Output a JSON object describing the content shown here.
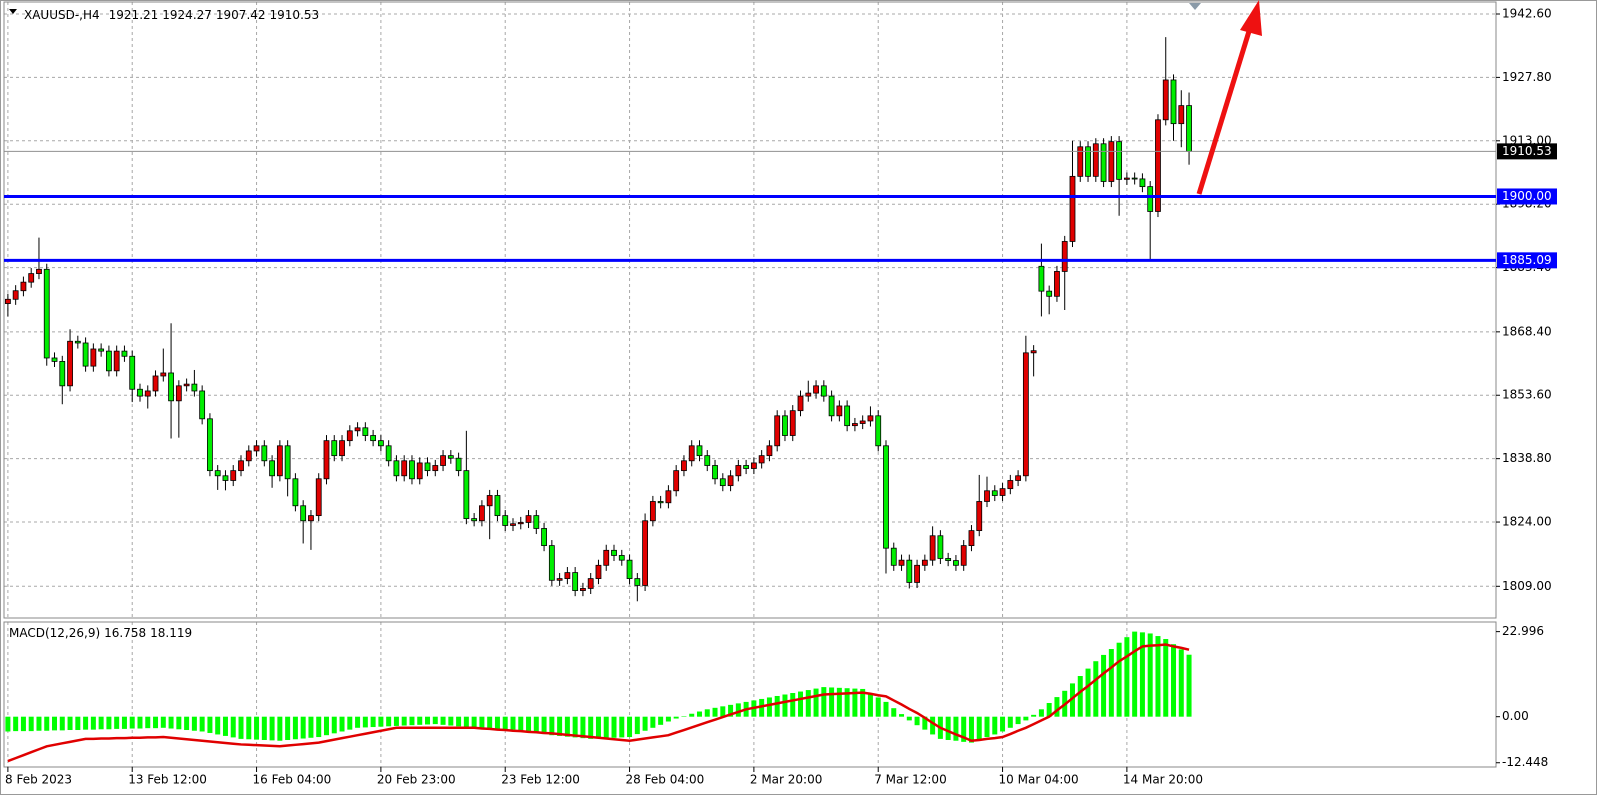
{
  "chart_data": {
    "type": "candlestick",
    "title": "XAUUSD-,H4",
    "bull_color": "#e00000",
    "bear_color": "#00ee00",
    "grid": true,
    "xlim": [
      -0.5,
      191.5
    ],
    "ylim": [
      1801.6,
      1945.4
    ],
    "yticks": [
      {
        "value": 1809,
        "label": "1809.00"
      },
      {
        "value": 1824,
        "label": "1824.00"
      },
      {
        "value": 1838.8,
        "label": "1838.80"
      },
      {
        "value": 1853.6,
        "label": "1853.60"
      },
      {
        "value": 1868.4,
        "label": "1868.40"
      },
      {
        "value": 1883.4,
        "label": "1883.40"
      },
      {
        "value": 1898.2,
        "label": "1898.20"
      },
      {
        "value": 1913,
        "label": "1913.00"
      },
      {
        "value": 1927.8,
        "label": "1927.80"
      },
      {
        "value": 1942.6,
        "label": "1942.60"
      }
    ],
    "xticks": [
      {
        "value": 0,
        "label": "8 Feb 2023"
      },
      {
        "value": 16,
        "label": "13 Feb 12:00"
      },
      {
        "value": 32,
        "label": "16 Feb 04:00"
      },
      {
        "value": 48,
        "label": "20 Feb 23:00"
      },
      {
        "value": 64,
        "label": "23 Feb 12:00"
      },
      {
        "value": 80,
        "label": "28 Feb 04:00"
      },
      {
        "value": 96,
        "label": "2 Mar 20:00"
      },
      {
        "value": 112,
        "label": "7 Mar 12:00"
      },
      {
        "value": 128,
        "label": "10 Mar 04:00"
      },
      {
        "value": 144,
        "label": "14 Mar 20:00"
      }
    ],
    "levels": [
      {
        "value": 1900,
        "label": "1900.00",
        "color": "#0000ff"
      },
      {
        "value": 1885.09,
        "label": "1885.09",
        "color": "#0000ff"
      }
    ],
    "candles": [
      [
        1875,
        1877.3,
        1872,
        1876
      ],
      [
        1876,
        1879.3,
        1874.7,
        1878
      ],
      [
        1878,
        1881.3,
        1876.7,
        1880
      ],
      [
        1880,
        1883.3,
        1878.7,
        1882
      ],
      [
        1882,
        1890.4,
        1880.7,
        1883
      ],
      [
        1883,
        1884.3,
        1860.5,
        1862.3
      ],
      [
        1862.3,
        1863.6,
        1860.2,
        1861.5
      ],
      [
        1861.5,
        1862.8,
        1851.5,
        1855.8
      ],
      [
        1855.8,
        1869,
        1854.5,
        1866.2
      ],
      [
        1866.2,
        1867.5,
        1864.5,
        1865.8
      ],
      [
        1865.8,
        1867.1,
        1859.1,
        1860.4
      ],
      [
        1860.4,
        1865.7,
        1859.1,
        1864.4
      ],
      [
        1864.4,
        1865.7,
        1862.6,
        1863.9
      ],
      [
        1863.9,
        1865.2,
        1858,
        1859.3
      ],
      [
        1859.3,
        1865.2,
        1858,
        1863.9
      ],
      [
        1863.9,
        1865.2,
        1861.4,
        1862.7
      ],
      [
        1862.7,
        1864,
        1852,
        1855
      ],
      [
        1855,
        1856.3,
        1852.1,
        1853.4
      ],
      [
        1853.4,
        1855.9,
        1850.5,
        1854.6
      ],
      [
        1854.6,
        1859.4,
        1853.3,
        1858.1
      ],
      [
        1858.1,
        1864.5,
        1856.8,
        1858.8
      ],
      [
        1858.8,
        1870.4,
        1843.5,
        1852.3
      ],
      [
        1852.3,
        1857.1,
        1843.7,
        1855.8
      ],
      [
        1855.8,
        1857.5,
        1854.5,
        1856.2
      ],
      [
        1856.2,
        1859.5,
        1853.3,
        1854.6
      ],
      [
        1854.6,
        1855.9,
        1846.8,
        1848.1
      ],
      [
        1848.1,
        1849.4,
        1834.7,
        1836
      ],
      [
        1836,
        1837.3,
        1831.5,
        1834.8
      ],
      [
        1834.8,
        1836.1,
        1831.4,
        1833.7
      ],
      [
        1833.7,
        1837.3,
        1832.4,
        1836
      ],
      [
        1836,
        1839.6,
        1834.7,
        1838.3
      ],
      [
        1838.3,
        1841.9,
        1837,
        1840.6
      ],
      [
        1840.6,
        1843.1,
        1839.3,
        1841.8
      ],
      [
        1841.8,
        1843.1,
        1837,
        1838.3
      ],
      [
        1838.3,
        1839.6,
        1832,
        1834.8
      ],
      [
        1834.8,
        1843.1,
        1833.5,
        1841.8
      ],
      [
        1841.8,
        1843.1,
        1830,
        1834.1
      ],
      [
        1834.1,
        1835.4,
        1826.5,
        1827.8
      ],
      [
        1827.8,
        1829.1,
        1819,
        1824.3
      ],
      [
        1824.3,
        1826.8,
        1817.5,
        1825.5
      ],
      [
        1825.5,
        1835.4,
        1824.2,
        1834.1
      ],
      [
        1834.1,
        1844.3,
        1832.8,
        1843
      ],
      [
        1843,
        1844.3,
        1838.2,
        1839.5
      ],
      [
        1839.5,
        1844.3,
        1838.2,
        1843
      ],
      [
        1843,
        1846.6,
        1841.7,
        1845.3
      ],
      [
        1845.3,
        1847.3,
        1844,
        1846
      ],
      [
        1846,
        1847.3,
        1842.9,
        1844.2
      ],
      [
        1844.2,
        1845.5,
        1841.7,
        1843
      ],
      [
        1843,
        1844.3,
        1840.5,
        1841.8
      ],
      [
        1841.8,
        1843.1,
        1837,
        1838.3
      ],
      [
        1838.3,
        1839.6,
        1833.5,
        1834.8
      ],
      [
        1834.8,
        1839.6,
        1833.5,
        1838.3
      ],
      [
        1838.3,
        1839.6,
        1832.8,
        1834.1
      ],
      [
        1834.1,
        1839.1,
        1832.8,
        1837.8
      ],
      [
        1837.8,
        1839.1,
        1834.7,
        1836
      ],
      [
        1836,
        1838.5,
        1834.7,
        1837.2
      ],
      [
        1837.2,
        1840.8,
        1835.9,
        1839.5
      ],
      [
        1839.5,
        1840.8,
        1837.6,
        1838.9
      ],
      [
        1838.9,
        1840.2,
        1834.7,
        1836
      ],
      [
        1836,
        1845.3,
        1823.5,
        1824.8
      ],
      [
        1824.8,
        1826.1,
        1823,
        1824.3
      ],
      [
        1824.3,
        1829.1,
        1823,
        1827.8
      ],
      [
        1827.8,
        1831.5,
        1820,
        1830.2
      ],
      [
        1830.2,
        1831.5,
        1824.2,
        1825.5
      ],
      [
        1825.5,
        1826.8,
        1821.9,
        1823.2
      ],
      [
        1823.2,
        1824.9,
        1821.9,
        1823.6
      ],
      [
        1823.6,
        1825.2,
        1822.3,
        1823.9
      ],
      [
        1823.9,
        1826.8,
        1822.6,
        1825.5
      ],
      [
        1825.5,
        1826.8,
        1821.2,
        1822.5
      ],
      [
        1822.5,
        1823.8,
        1817.2,
        1818.5
      ],
      [
        1818.5,
        1819.8,
        1809.1,
        1810.4
      ],
      [
        1810.4,
        1812.1,
        1809.1,
        1810.8
      ],
      [
        1810.8,
        1813.5,
        1809.5,
        1812.2
      ],
      [
        1812.2,
        1813.5,
        1806.7,
        1808
      ],
      [
        1808,
        1809.8,
        1806.7,
        1808.5
      ],
      [
        1808.5,
        1812.1,
        1807.2,
        1810.8
      ],
      [
        1810.8,
        1815.2,
        1809.5,
        1813.9
      ],
      [
        1813.9,
        1818.7,
        1812.6,
        1817.4
      ],
      [
        1817.4,
        1818.7,
        1814.9,
        1816.2
      ],
      [
        1816.2,
        1817.5,
        1813.8,
        1815.1
      ],
      [
        1815.1,
        1816.4,
        1809.5,
        1810.8
      ],
      [
        1810.8,
        1812.1,
        1805.5,
        1809.2
      ],
      [
        1809.2,
        1826,
        1807.9,
        1824.3
      ],
      [
        1824.3,
        1830.1,
        1823,
        1828.8
      ],
      [
        1828.8,
        1830.1,
        1827.2,
        1828.5
      ],
      [
        1828.5,
        1832.6,
        1827.2,
        1831.3
      ],
      [
        1831.3,
        1837.3,
        1830,
        1836
      ],
      [
        1836,
        1839.6,
        1834.7,
        1838.3
      ],
      [
        1838.3,
        1843.1,
        1837,
        1841.8
      ],
      [
        1841.8,
        1843.1,
        1838.2,
        1839.5
      ],
      [
        1839.5,
        1840.8,
        1835.9,
        1837.2
      ],
      [
        1837.2,
        1838.5,
        1832.8,
        1834.1
      ],
      [
        1834.1,
        1835.4,
        1831.2,
        1832.5
      ],
      [
        1832.5,
        1836.1,
        1831.2,
        1834.8
      ],
      [
        1834.8,
        1838.5,
        1833.5,
        1837.2
      ],
      [
        1837.2,
        1838.5,
        1835.2,
        1836.5
      ],
      [
        1836.5,
        1839.1,
        1835.2,
        1837.8
      ],
      [
        1837.8,
        1840.8,
        1836.5,
        1839.5
      ],
      [
        1839.5,
        1843.1,
        1838.2,
        1841.8
      ],
      [
        1841.8,
        1850.1,
        1840.5,
        1848.8
      ],
      [
        1848.8,
        1850.1,
        1842.9,
        1844.2
      ],
      [
        1844.2,
        1851.3,
        1842.9,
        1850
      ],
      [
        1850,
        1854.7,
        1848.7,
        1853.4
      ],
      [
        1853.4,
        1857,
        1852.1,
        1854.1
      ],
      [
        1854.1,
        1857.1,
        1852.8,
        1855.8
      ],
      [
        1855.8,
        1857.1,
        1852.1,
        1853.4
      ],
      [
        1853.4,
        1854.7,
        1847.5,
        1848.8
      ],
      [
        1848.8,
        1852.4,
        1847.5,
        1851.1
      ],
      [
        1851.1,
        1852.4,
        1845.2,
        1846.5
      ],
      [
        1846.5,
        1848.3,
        1845.2,
        1847
      ],
      [
        1847,
        1848.9,
        1845.7,
        1847.6
      ],
      [
        1847.6,
        1851,
        1846.3,
        1848.8
      ],
      [
        1848.8,
        1850.1,
        1840.5,
        1841.8
      ],
      [
        1841.8,
        1843.1,
        1812,
        1817.9
      ],
      [
        1817.9,
        1819.2,
        1812.6,
        1813.9
      ],
      [
        1813.9,
        1816.4,
        1812.6,
        1815.1
      ],
      [
        1815.1,
        1816.4,
        1808.5,
        1809.9
      ],
      [
        1809.9,
        1815.2,
        1808.6,
        1813.9
      ],
      [
        1813.9,
        1816.4,
        1812.6,
        1815.1
      ],
      [
        1815.1,
        1823,
        1813.8,
        1820.8
      ],
      [
        1820.8,
        1822.1,
        1814.2,
        1815.5
      ],
      [
        1815.5,
        1816.8,
        1813.7,
        1815
      ],
      [
        1815,
        1816.3,
        1812.6,
        1813.9
      ],
      [
        1813.9,
        1819.8,
        1812.6,
        1818.5
      ],
      [
        1818.5,
        1823.3,
        1817.2,
        1822
      ],
      [
        1822,
        1835,
        1820.7,
        1828.8
      ],
      [
        1828.8,
        1834.6,
        1827.5,
        1831.3
      ],
      [
        1831.3,
        1832.6,
        1828.9,
        1830.2
      ],
      [
        1830.2,
        1833.1,
        1828.9,
        1831.8
      ],
      [
        1831.8,
        1835,
        1830.5,
        1833.7
      ],
      [
        1833.7,
        1836.1,
        1832.4,
        1834.8
      ],
      [
        1834.8,
        1867.5,
        1833.5,
        1863.5
      ],
      [
        1863.5,
        1865.3,
        1858,
        1864
      ],
      [
        1883.7,
        1889,
        1872,
        1877.9
      ],
      [
        1877.9,
        1879.2,
        1872.5,
        1876.7
      ],
      [
        1876.7,
        1883.8,
        1875.4,
        1882.5
      ],
      [
        1882.5,
        1890.8,
        1873.5,
        1889.5
      ],
      [
        1889.5,
        1913,
        1888.2,
        1904.7
      ],
      [
        1904.7,
        1912.9,
        1903.4,
        1911.6
      ],
      [
        1911.6,
        1912.9,
        1903.4,
        1904.7
      ],
      [
        1904.7,
        1913.6,
        1903.4,
        1912.3
      ],
      [
        1912.3,
        1913.6,
        1902.2,
        1903.5
      ],
      [
        1903.5,
        1914.1,
        1902.2,
        1912.8
      ],
      [
        1912.8,
        1914.1,
        1895.5,
        1904
      ],
      [
        1904,
        1905.6,
        1902.7,
        1904.3
      ],
      [
        1904.3,
        1905.6,
        1902.8,
        1904.1
      ],
      [
        1904.1,
        1905.4,
        1901,
        1902.3
      ],
      [
        1902.3,
        1903.6,
        1885.3,
        1896.5
      ],
      [
        1896.5,
        1919.2,
        1895.2,
        1917.9
      ],
      [
        1917.9,
        1937.2,
        1916.6,
        1927.2
      ],
      [
        1927.2,
        1928.5,
        1913,
        1917
      ],
      [
        1917,
        1924.8,
        1911.5,
        1921.21
      ],
      [
        1921.21,
        1924.27,
        1907.42,
        1910.53
      ]
    ],
    "indicator": {
      "name": "MACD(12,26,9)",
      "histogram_color": "#00ff00",
      "signal_color": "#e00000",
      "ylim": [
        -13.6,
        25.6
      ],
      "yticks": [
        -12.448,
        {
          "value": 0,
          "label": "0.00"
        },
        22.996
      ],
      "histogram": [
        -4,
        -3.9,
        -3.9,
        -3.9,
        -3.8,
        -3.8,
        -3.7,
        -3.7,
        -3.6,
        -3.6,
        -3.5,
        -3.5,
        -3.4,
        -3.4,
        -3.3,
        -3.3,
        -3.2,
        -3.2,
        -3.1,
        -3.1,
        -3,
        -3.2,
        -3.4,
        -3.6,
        -3.8,
        -4,
        -4.4,
        -4.8,
        -5.2,
        -5.6,
        -6,
        -6.1,
        -6.2,
        -6.3,
        -6.4,
        -6.5,
        -6.3,
        -6.1,
        -5.9,
        -5.7,
        -5.5,
        -5,
        -4.5,
        -4,
        -3.5,
        -3,
        -2.9,
        -2.8,
        -2.7,
        -2.6,
        -2.5,
        -2.4,
        -2.3,
        -2.2,
        -2.1,
        -2,
        -2.2,
        -2.4,
        -2.6,
        -2.8,
        -3,
        -3.1,
        -3.2,
        -3.3,
        -3.4,
        -3.5,
        -3.8,
        -4.1,
        -4.4,
        -4.7,
        -5,
        -5.2,
        -5.4,
        -5.6,
        -5.8,
        -6,
        -5.9,
        -5.8,
        -5.7,
        -5.6,
        -5.5,
        -4.7,
        -3.8,
        -3,
        -2.2,
        -1.3,
        -0.5,
        0.1,
        0.8,
        1.4,
        2,
        2.4,
        2.8,
        3.2,
        3.6,
        4,
        4.4,
        4.8,
        5.2,
        5.6,
        6,
        6.4,
        6.8,
        7.2,
        7.6,
        8,
        7.9,
        7.8,
        7.7,
        7.6,
        7.5,
        6.3,
        5.2,
        4,
        2.3,
        0.7,
        -1,
        -2.3,
        -3.5,
        -4.8,
        -6,
        -6.3,
        -6.5,
        -6.8,
        -7,
        -6.3,
        -5.5,
        -4.8,
        -4,
        -3,
        -2,
        -1,
        0.5,
        2,
        3.7,
        5.3,
        7,
        9,
        11,
        13,
        15,
        16.7,
        18.3,
        20,
        21.5,
        23,
        22.8,
        22.5,
        21.8,
        21,
        19.6,
        18.2,
        16.758
      ],
      "signal": [
        -12,
        -11.2,
        -10.4,
        -9.6,
        -8.8,
        -8,
        -7.6,
        -7.2,
        -6.8,
        -6.4,
        -6,
        -6,
        -5.9,
        -5.9,
        -5.8,
        -5.8,
        -5.7,
        -5.7,
        -5.6,
        -5.6,
        -5.5,
        -5.7,
        -5.9,
        -6.1,
        -6.3,
        -6.5,
        -6.7,
        -6.9,
        -7.1,
        -7.3,
        -7.5,
        -7.6,
        -7.7,
        -7.8,
        -7.9,
        -8,
        -7.8,
        -7.6,
        -7.4,
        -7.2,
        -7,
        -6.6,
        -6.2,
        -5.8,
        -5.4,
        -5,
        -4.6,
        -4.2,
        -3.8,
        -3.4,
        -3,
        -3,
        -3,
        -3,
        -3,
        -3,
        -3,
        -3,
        -3,
        -3,
        -3,
        -3.2,
        -3.3,
        -3.5,
        -3.6,
        -3.8,
        -3.9,
        -4.1,
        -4.2,
        -4.4,
        -4.5,
        -4.7,
        -4.9,
        -5.1,
        -5.3,
        -5.5,
        -5.7,
        -5.9,
        -6.1,
        -6.3,
        -6.5,
        -6.2,
        -5.9,
        -5.6,
        -5.3,
        -5,
        -4.3,
        -3.6,
        -2.9,
        -2.2,
        -1.5,
        -0.8,
        -0.1,
        0.6,
        1.3,
        2,
        2.4,
        2.8,
        3.2,
        3.6,
        4,
        4.4,
        4.8,
        5.2,
        5.6,
        6,
        6.1,
        6.2,
        6.3,
        6.4,
        6.5,
        6.2,
        5.8,
        5.5,
        4.4,
        3.3,
        2.1,
        1,
        -0.3,
        -1.7,
        -3,
        -3.9,
        -4.8,
        -5.6,
        -6.5,
        -6.3,
        -6,
        -5.8,
        -5.5,
        -4.7,
        -3.8,
        -3,
        -2,
        -1,
        0,
        1.7,
        3.3,
        5,
        6.7,
        8.3,
        10,
        11.7,
        13.3,
        15,
        16.3,
        17.7,
        19,
        19.2,
        19.3,
        19.5,
        19,
        18.6,
        18.119
      ]
    }
  }
}
